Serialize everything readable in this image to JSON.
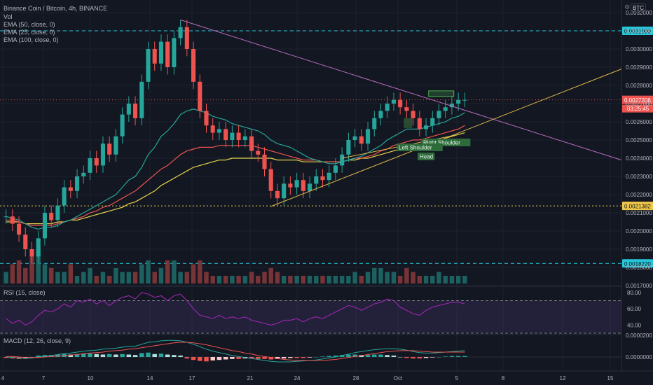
{
  "header": {
    "title": "Binance Coin / Bitcoin, 4h, BINANCE",
    "vol_label": "Vol",
    "ema_labels": [
      "EMA (50, close, 0)",
      "EMA (25, close, 0)",
      "EMA (100, close, 0)"
    ],
    "btc_badge": "BTC",
    "gear_icon": "gear-icon"
  },
  "price_axis": {
    "ticks": [
      "0.0032000",
      "0.0031000",
      "0.0030000",
      "0.0029000",
      "0.0028000",
      "0.0027000",
      "0.0026000",
      "0.0025000",
      "0.0024000",
      "0.0023000",
      "0.0022000",
      "0.0021000",
      "0.0020000",
      "0.0019000",
      "0.0018000",
      "0.0017000"
    ],
    "last_price": "0.0027206",
    "countdown": "03:25:45",
    "level_high": "0.0031000",
    "level_mid": "0.0021382",
    "level_low": "0.0018220"
  },
  "rsi": {
    "label": "RSI (15, close)",
    "ticks": [
      "80.00",
      "60.00",
      "40.00"
    ]
  },
  "macd": {
    "label": "MACD (12, 26, close, 9)",
    "ticks": [
      "0.0000200",
      "0.0000000"
    ]
  },
  "time_axis": {
    "labels": [
      "4",
      "7",
      "10",
      "14",
      "17",
      "21",
      "24",
      "28",
      "Oct",
      "5",
      "8",
      "12",
      "15"
    ]
  },
  "annotations": {
    "left_shoulder": "Left Shoulder",
    "head": "Head",
    "right_shoulder": "Right Shoulder"
  },
  "colors": {
    "background": "#131722",
    "up": "#26a69a",
    "down": "#ef5350",
    "ema50": "#ef5350",
    "ema25": "#26a69a",
    "ema100": "#e8d44d",
    "trendline": "#b86dc1",
    "support": "#e0b84a",
    "dashed_level": "#26c6da",
    "rsi_line": "#9c27b0",
    "macd_line": "#26a69a",
    "signal_line": "#ef5350"
  },
  "chart_data": {
    "type": "candlestick",
    "ylim": [
      0.0017,
      0.0032
    ],
    "x_start": "Sep 3",
    "x_end": "Oct 5",
    "closes": [
      0.00208,
      0.00204,
      0.00198,
      0.0019,
      0.00186,
      0.00196,
      0.0021,
      0.00206,
      0.00214,
      0.00224,
      0.00222,
      0.0023,
      0.00232,
      0.0024,
      0.00236,
      0.00248,
      0.00242,
      0.00252,
      0.00264,
      0.0027,
      0.00262,
      0.00282,
      0.003,
      0.00292,
      0.00304,
      0.0029,
      0.00306,
      0.00312,
      0.003,
      0.00282,
      0.00266,
      0.00258,
      0.00254,
      0.00256,
      0.0025,
      0.00254,
      0.0025,
      0.00252,
      0.00244,
      0.00242,
      0.00234,
      0.00222,
      0.00218,
      0.00226,
      0.00224,
      0.00228,
      0.00222,
      0.00226,
      0.0023,
      0.00228,
      0.00232,
      0.00236,
      0.00242,
      0.0025,
      0.00252,
      0.00248,
      0.00256,
      0.00262,
      0.00266,
      0.0027,
      0.00272,
      0.00268,
      0.00266,
      0.00262,
      0.00256,
      0.00258,
      0.00262,
      0.00266,
      0.00268,
      0.0027,
      0.00272,
      0.00272
    ],
    "ema50": [
      0.00206,
      0.00206,
      0.00205,
      0.00204,
      0.00203,
      0.00203,
      0.00203,
      0.00203,
      0.00204,
      0.00205,
      0.00206,
      0.00207,
      0.00208,
      0.0021,
      0.00211,
      0.00213,
      0.00214,
      0.00216,
      0.00218,
      0.0022,
      0.00222,
      0.00225,
      0.00228,
      0.00231,
      0.00234,
      0.00236,
      0.00239,
      0.00242,
      0.00244,
      0.00245,
      0.00246,
      0.00246,
      0.00246,
      0.00247,
      0.00247,
      0.00247,
      0.00247,
      0.00247,
      0.00247,
      0.00246,
      0.00245,
      0.00244,
      0.00243,
      0.00242,
      0.00241,
      0.0024,
      0.00239,
      0.00239,
      0.00239,
      0.00238,
      0.00238,
      0.00238,
      0.00238,
      0.00239,
      0.0024,
      0.0024,
      0.00241,
      0.00242,
      0.00244,
      0.00245,
      0.00247,
      0.00248,
      0.00249,
      0.0025,
      0.0025,
      0.00251,
      0.00252,
      0.00253,
      0.00254,
      0.00255,
      0.00256,
      0.00258
    ],
    "ema25": [
      0.00208,
      0.00207,
      0.00206,
      0.00204,
      0.00202,
      0.00201,
      0.00202,
      0.00202,
      0.00203,
      0.00205,
      0.00206,
      0.00208,
      0.0021,
      0.00212,
      0.00214,
      0.00216,
      0.00218,
      0.0022,
      0.00224,
      0.00228,
      0.0023,
      0.00235,
      0.00242,
      0.00246,
      0.00252,
      0.00255,
      0.00259,
      0.00264,
      0.00266,
      0.00267,
      0.00266,
      0.00265,
      0.00263,
      0.00262,
      0.00261,
      0.00259,
      0.00258,
      0.00257,
      0.00256,
      0.00255,
      0.00253,
      0.0025,
      0.00248,
      0.00247,
      0.00246,
      0.00244,
      0.00242,
      0.0024,
      0.00239,
      0.00238,
      0.00237,
      0.00237,
      0.00238,
      0.00239,
      0.0024,
      0.00241,
      0.00243,
      0.00245,
      0.00247,
      0.0025,
      0.00252,
      0.00254,
      0.00256,
      0.00256,
      0.00256,
      0.00257,
      0.00258,
      0.00259,
      0.0026,
      0.00262,
      0.00263,
      0.00265
    ],
    "ema100": [
      0.00205,
      0.00205,
      0.00205,
      0.00204,
      0.00204,
      0.00204,
      0.00204,
      0.00204,
      0.00205,
      0.00205,
      0.00206,
      0.00206,
      0.00207,
      0.00208,
      0.00209,
      0.0021,
      0.00211,
      0.00212,
      0.00213,
      0.00215,
      0.00216,
      0.00218,
      0.0022,
      0.00222,
      0.00225,
      0.00227,
      0.00229,
      0.00231,
      0.00233,
      0.00235,
      0.00236,
      0.00237,
      0.00238,
      0.00239,
      0.00239,
      0.0024,
      0.0024,
      0.0024,
      0.0024,
      0.0024,
      0.0024,
      0.0024,
      0.00239,
      0.00239,
      0.00239,
      0.00239,
      0.00238,
      0.00238,
      0.00238,
      0.00238,
      0.00238,
      0.00238,
      0.00238,
      0.00239,
      0.00239,
      0.0024,
      0.0024,
      0.00241,
      0.00242,
      0.00243,
      0.00244,
      0.00245,
      0.00246,
      0.00247,
      0.00247,
      0.00248,
      0.00249,
      0.0025,
      0.00251,
      0.00252,
      0.00253,
      0.00254
    ],
    "volume": [
      0.3,
      0.5,
      0.6,
      0.4,
      0.7,
      0.9,
      0.5,
      0.4,
      0.3,
      0.3,
      0.5,
      0.2,
      0.3,
      0.4,
      0.2,
      0.3,
      0.2,
      0.4,
      0.3,
      0.3,
      0.3,
      0.5,
      0.6,
      0.3,
      0.4,
      0.6,
      0.6,
      0.3,
      0.3,
      0.5,
      0.6,
      0.3,
      0.2,
      0.2,
      0.2,
      0.2,
      0.2,
      0.2,
      0.3,
      0.2,
      0.3,
      0.4,
      0.3,
      0.2,
      0.2,
      0.2,
      0.2,
      0.2,
      0.2,
      0.2,
      0.2,
      0.2,
      0.2,
      0.2,
      0.3,
      0.2,
      0.3,
      0.4,
      0.4,
      0.3,
      0.3,
      0.2,
      0.4,
      0.3,
      0.2,
      0.2,
      0.2,
      0.3,
      0.2,
      0.2,
      0.2,
      0.2
    ],
    "rsi": [
      48,
      42,
      46,
      40,
      44,
      52,
      58,
      56,
      60,
      66,
      62,
      70,
      68,
      72,
      66,
      70,
      64,
      70,
      74,
      76,
      72,
      80,
      78,
      74,
      76,
      70,
      76,
      78,
      70,
      60,
      52,
      50,
      48,
      52,
      48,
      50,
      48,
      50,
      46,
      44,
      42,
      40,
      42,
      46,
      46,
      48,
      44,
      48,
      50,
      48,
      52,
      56,
      60,
      64,
      62,
      58,
      62,
      66,
      68,
      72,
      70,
      62,
      58,
      54,
      52,
      58,
      62,
      64,
      66,
      68,
      68,
      66
    ],
    "macd_hist": [
      -0.2,
      -0.3,
      -0.4,
      -0.3,
      0.0,
      0.3,
      0.4,
      0.4,
      0.5,
      0.6,
      0.5,
      0.6,
      0.7,
      0.7,
      0.6,
      0.5,
      0.6,
      0.5,
      0.6,
      0.5,
      0.4,
      0.8,
      0.9,
      0.6,
      0.7,
      0.5,
      0.4,
      0.3,
      -0.3,
      -0.6,
      -0.8,
      -0.9,
      -0.7,
      -0.6,
      -0.5,
      -0.4,
      -0.4,
      -0.3,
      -0.3,
      -0.4,
      -0.4,
      -0.5,
      -0.4,
      -0.3,
      -0.2,
      -0.2,
      -0.2,
      -0.1,
      0.0,
      0.1,
      0.2,
      0.3,
      0.4,
      0.5,
      0.5,
      0.4,
      0.4,
      0.5,
      0.5,
      0.4,
      0.3,
      0.0,
      -0.2,
      -0.3,
      -0.3,
      -0.2,
      -0.1,
      0.0,
      0.1,
      0.2,
      0.2,
      0.2
    ],
    "macd_line": [
      0.0,
      -0.1,
      -0.2,
      -0.3,
      -0.2,
      0.0,
      0.2,
      0.3,
      0.5,
      0.7,
      0.8,
      1.0,
      1.2,
      1.3,
      1.4,
      1.6,
      1.7,
      1.8,
      2.0,
      2.2,
      2.2,
      2.6,
      3.0,
      3.1,
      3.3,
      3.4,
      3.4,
      3.3,
      3.0,
      2.6,
      2.1,
      1.6,
      1.2,
      0.9,
      0.6,
      0.3,
      0.1,
      -0.1,
      -0.3,
      -0.5,
      -0.7,
      -0.9,
      -1.0,
      -1.0,
      -1.0,
      -0.9,
      -0.8,
      -0.7,
      -0.6,
      -0.4,
      -0.2,
      0.0,
      0.3,
      0.6,
      0.9,
      1.1,
      1.3,
      1.5,
      1.6,
      1.7,
      1.7,
      1.6,
      1.4,
      1.1,
      0.9,
      0.8,
      0.8,
      0.9,
      1.0,
      1.1,
      1.2,
      1.3
    ],
    "macd_signal": [
      0.1,
      0.1,
      0.0,
      -0.1,
      -0.1,
      -0.1,
      0.0,
      0.1,
      0.2,
      0.3,
      0.4,
      0.5,
      0.7,
      0.8,
      0.9,
      1.0,
      1.2,
      1.3,
      1.4,
      1.6,
      1.7,
      1.9,
      2.1,
      2.3,
      2.5,
      2.7,
      2.9,
      3.0,
      3.0,
      2.9,
      2.7,
      2.5,
      2.2,
      1.9,
      1.6,
      1.3,
      1.1,
      0.8,
      0.6,
      0.3,
      0.1,
      -0.1,
      -0.3,
      -0.5,
      -0.6,
      -0.7,
      -0.7,
      -0.7,
      -0.7,
      -0.7,
      -0.6,
      -0.5,
      -0.3,
      -0.1,
      0.1,
      0.3,
      0.5,
      0.7,
      0.9,
      1.1,
      1.2,
      1.3,
      1.3,
      1.3,
      1.2,
      1.1,
      1.0,
      1.0,
      1.0,
      1.0,
      1.0,
      1.0
    ]
  }
}
